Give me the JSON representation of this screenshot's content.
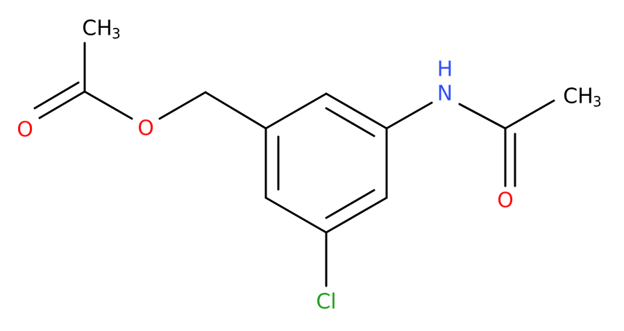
{
  "nodes": [
    {
      "label": "CH",
      "subscript": "3"
    },
    {
      "label": "O"
    },
    {
      "label": "O"
    },
    {
      "label": "H"
    },
    {
      "label": "N"
    },
    {
      "label": "CH",
      "subscript": "3"
    },
    {
      "label": "O"
    },
    {
      "label": "Cl"
    }
  ]
}
